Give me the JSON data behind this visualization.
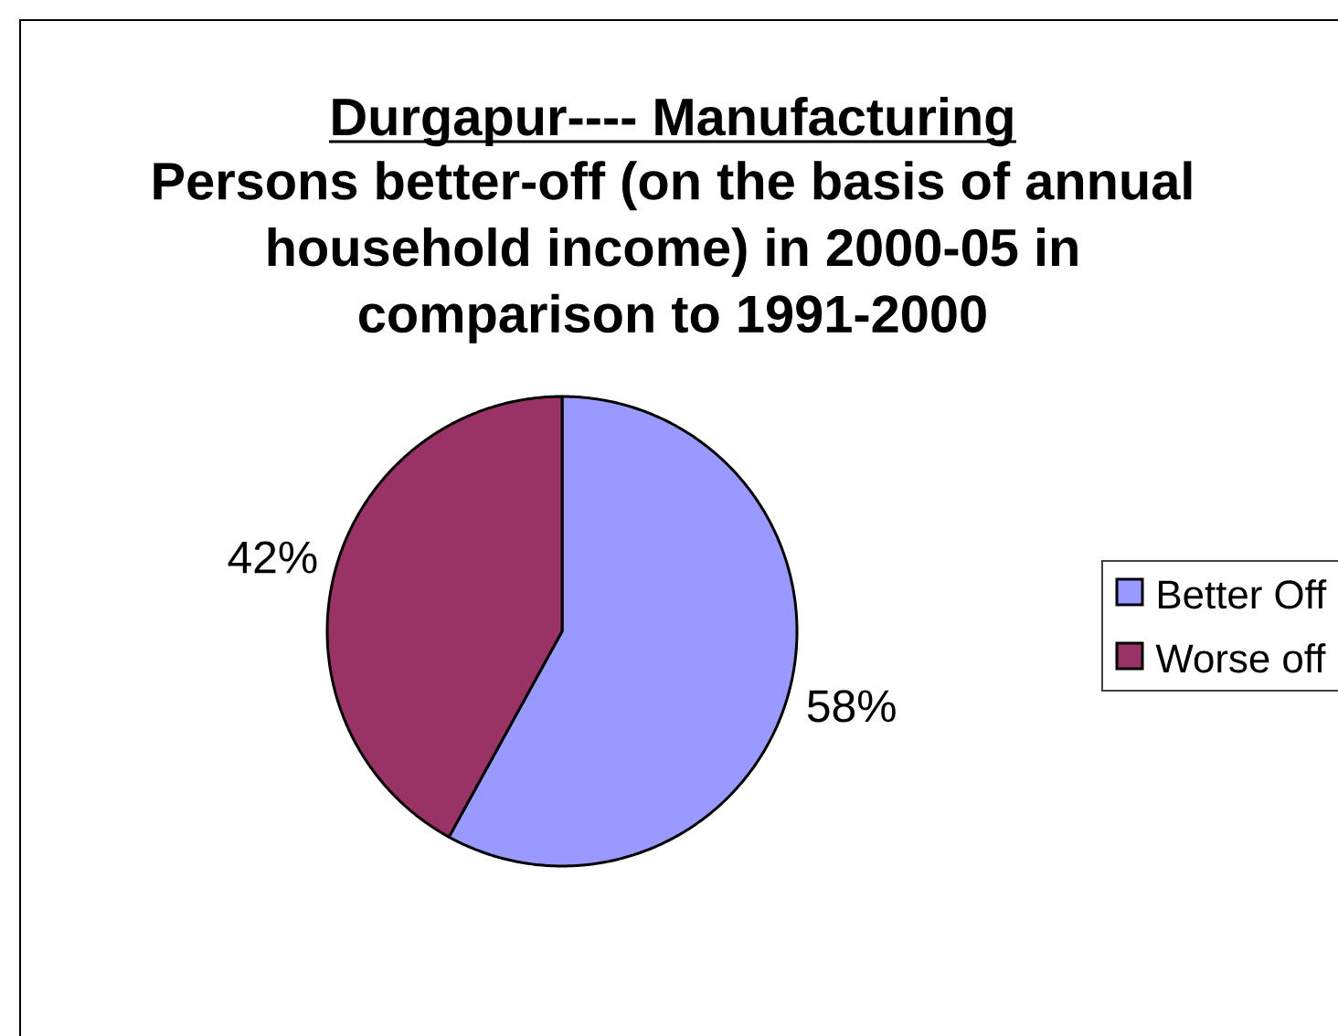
{
  "chart_data": {
    "type": "pie",
    "title": "Durgapur---- Manufacturing",
    "subtitle": "Persons better-off (on the basis of annual household income) in 2000-05 in comparison to 1991-2000",
    "categories": [
      "Better Off",
      "Worse off"
    ],
    "values": [
      58,
      42
    ],
    "colors": [
      "#9999ff",
      "#993366"
    ],
    "value_labels": [
      "58%",
      "42%"
    ],
    "legend": "right"
  }
}
